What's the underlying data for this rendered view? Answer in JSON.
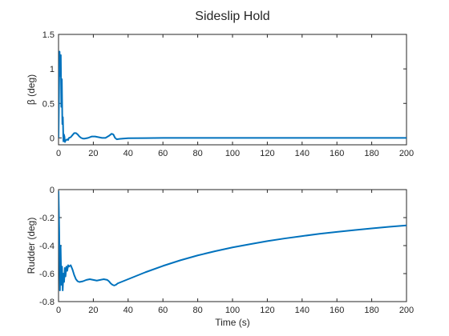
{
  "figure": {
    "title": "Sideslip Hold"
  },
  "chart_data": [
    {
      "type": "line",
      "ylabel": "β (deg)",
      "xlabel": "",
      "xlim": [
        0,
        200
      ],
      "ylim": [
        -0.1,
        1.5
      ],
      "xticks": [
        0,
        20,
        40,
        60,
        80,
        100,
        120,
        140,
        160,
        180,
        200
      ],
      "yticks": [
        0,
        0.5,
        1,
        1.5
      ],
      "ytick_labels": [
        "0",
        "0.5",
        "1",
        "1.5"
      ],
      "grid": false,
      "series": [
        {
          "color": "#0072BD",
          "x": [
            0,
            0.3,
            0.6,
            1.0,
            1.3,
            1.6,
            1.9,
            2.2,
            2.5,
            2.8,
            3.1,
            3.4,
            3.7,
            4.0,
            4.5,
            5.0,
            5.5,
            6.0,
            7.0,
            8.0,
            9.0,
            10.0,
            11.0,
            12.0,
            13.0,
            14.0,
            15.0,
            17.0,
            19.0,
            21.0,
            23.0,
            25.0,
            27.0,
            29.0,
            30.5,
            31.5,
            32.5,
            33.5,
            35.0,
            37.0,
            40.0,
            50.0,
            60.0,
            80.0,
            100.0,
            120.0,
            140.0,
            160.0,
            180.0,
            200.0
          ],
          "y": [
            0,
            0.7,
            1.25,
            0.9,
            1.2,
            0.45,
            0.85,
            0.2,
            0.3,
            -0.05,
            0.05,
            0.02,
            -0.06,
            -0.04,
            -0.03,
            -0.02,
            -0.03,
            0.0,
            0.01,
            0.04,
            0.07,
            0.07,
            0.05,
            0.02,
            0.0,
            -0.01,
            -0.01,
            0.0,
            0.02,
            0.02,
            0.01,
            0.0,
            0.0,
            0.03,
            0.06,
            0.05,
            0.0,
            -0.02,
            -0.015,
            -0.01,
            -0.005,
            -0.003,
            0.0,
            0.0,
            0.0,
            0.0,
            0.0,
            0.0,
            0.0,
            0.0
          ]
        }
      ]
    },
    {
      "type": "line",
      "ylabel": "Rudder (deg)",
      "xlabel": "Time (s)",
      "xlim": [
        0,
        200
      ],
      "ylim": [
        -0.8,
        0
      ],
      "xticks": [
        0,
        20,
        40,
        60,
        80,
        100,
        120,
        140,
        160,
        180,
        200
      ],
      "yticks": [
        -0.8,
        -0.6,
        -0.4,
        -0.2,
        0
      ],
      "ytick_labels": [
        "-0.8",
        "-0.6",
        "-0.4",
        "-0.2",
        "0"
      ],
      "grid": false,
      "series": [
        {
          "color": "#0072BD",
          "x": [
            0,
            0.4,
            0.8,
            1.2,
            1.6,
            2.0,
            2.4,
            2.8,
            3.2,
            3.6,
            4.0,
            4.5,
            5.0,
            5.5,
            6.0,
            7.0,
            8.0,
            9.0,
            10.0,
            11.0,
            12.0,
            14.0,
            16.0,
            18.0,
            20.0,
            22.0,
            24.0,
            26.0,
            28.0,
            29.0,
            30.0,
            31.0,
            32.0,
            33.0,
            34.0,
            36.0,
            38.0,
            40.0,
            45.0,
            50.0,
            60.0,
            70.0,
            80.0,
            90.0,
            100.0,
            110.0,
            120.0,
            130.0,
            140.0,
            150.0,
            160.0,
            170.0,
            180.0,
            190.0,
            200.0
          ],
          "y": [
            -0.01,
            -0.3,
            -0.72,
            -0.4,
            -0.68,
            -0.55,
            -0.72,
            -0.6,
            -0.66,
            -0.56,
            -0.62,
            -0.55,
            -0.58,
            -0.54,
            -0.55,
            -0.54,
            -0.57,
            -0.61,
            -0.64,
            -0.655,
            -0.66,
            -0.655,
            -0.645,
            -0.64,
            -0.645,
            -0.65,
            -0.645,
            -0.64,
            -0.645,
            -0.655,
            -0.67,
            -0.68,
            -0.685,
            -0.68,
            -0.67,
            -0.66,
            -0.65,
            -0.64,
            -0.615,
            -0.59,
            -0.545,
            -0.505,
            -0.47,
            -0.44,
            -0.413,
            -0.39,
            -0.368,
            -0.349,
            -0.332,
            -0.316,
            -0.302,
            -0.289,
            -0.277,
            -0.266,
            -0.256
          ]
        }
      ]
    }
  ]
}
